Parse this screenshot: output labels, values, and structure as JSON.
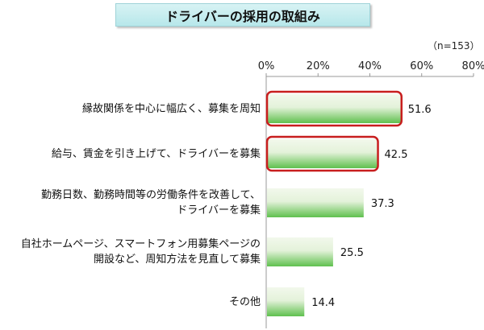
{
  "chart_data": {
    "type": "bar",
    "orientation": "horizontal",
    "title": "ドライバーの採用の取組み",
    "note": "（n=153）",
    "categories": [
      [
        "縁故関係を中心に幅広く、募集を周知"
      ],
      [
        "給与、賃金を引き上げて、ドライバーを募集"
      ],
      [
        "勤務日数、勤務時間等の労働条件を改善して、",
        "ドライバーを募集"
      ],
      [
        "自社ホームページ、スマートフォン用募集ページの",
        "開設など、周知方法を見直して募集"
      ],
      [
        "その他"
      ]
    ],
    "values": [
      51.6,
      42.5,
      37.3,
      25.5,
      14.4
    ],
    "value_labels": [
      "51.6",
      "42.5",
      "37.3",
      "25.5",
      "14.4"
    ],
    "highlighted": [
      true,
      true,
      false,
      false,
      false
    ],
    "xlim": [
      0,
      80
    ],
    "xticks": [
      0,
      20,
      40,
      60,
      80
    ],
    "xtick_labels": [
      "0%",
      "20%",
      "40%",
      "60%",
      "80%"
    ],
    "grid": false,
    "colors": {
      "bar_top": "#f2f8ec",
      "bar_bottom": "#5fc04e",
      "highlight_border": "#c81e1e",
      "axis": "#999999",
      "title_bg": "#c3ecef"
    }
  }
}
